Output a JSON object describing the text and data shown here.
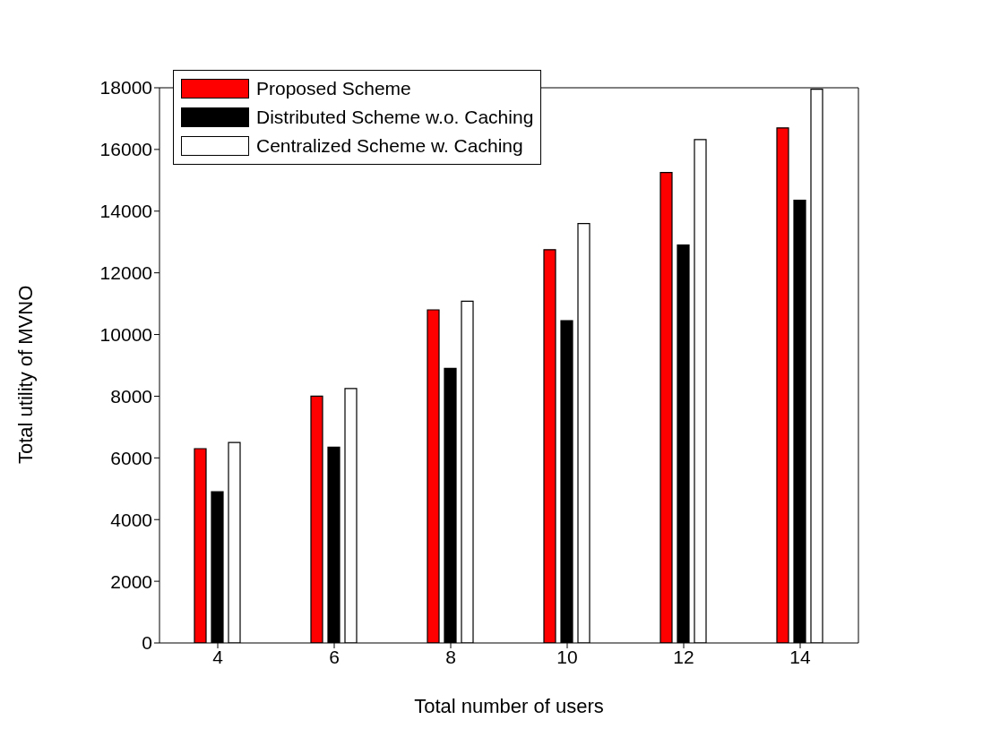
{
  "chart_data": {
    "type": "bar",
    "xlabel": "Total number of users",
    "ylabel": "Total utility of MVNO",
    "categories": [
      "4",
      "6",
      "8",
      "10",
      "12",
      "14"
    ],
    "series": [
      {
        "name": "Proposed Scheme",
        "color": "#ff0000",
        "values": [
          6300,
          8000,
          10800,
          12750,
          15250,
          16700
        ]
      },
      {
        "name": "Distributed Scheme w.o. Caching",
        "color": "#000000",
        "values": [
          4900,
          6350,
          8900,
          10450,
          12900,
          14350
        ]
      },
      {
        "name": "Centralized Scheme w. Caching",
        "color": "#ffffff",
        "values": [
          6500,
          8250,
          11080,
          13600,
          16320,
          17950
        ]
      }
    ],
    "ylim": [
      0,
      18000
    ],
    "yticks": [
      0,
      2000,
      4000,
      6000,
      8000,
      10000,
      12000,
      14000,
      16000,
      18000
    ],
    "legend": "top left",
    "grid": false
  }
}
